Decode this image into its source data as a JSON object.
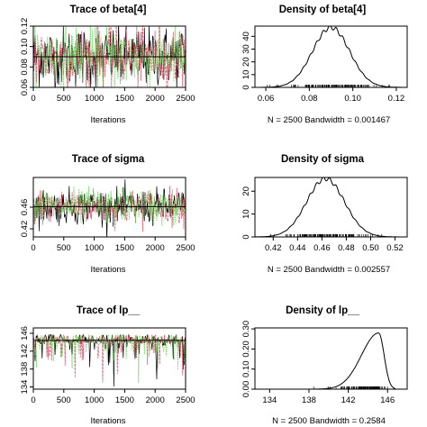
{
  "chart_data": [
    {
      "type": "line",
      "title": "Trace of beta[4]",
      "xlabel": "Iterations",
      "ylabel": "",
      "xlim": [
        0,
        2500
      ],
      "ylim": [
        0.06,
        0.12
      ],
      "xticks": [
        0,
        500,
        1000,
        1500,
        2000,
        2500
      ],
      "yticks": [
        0.06,
        0.08,
        0.1,
        0.12
      ],
      "ytick_labels": [
        "0.06",
        "0.08",
        "0.10",
        "0.12"
      ],
      "grid": false,
      "series": [
        {
          "color": "#000000",
          "center": 0.09,
          "spread": 0.0147
        },
        {
          "color": "#df536b",
          "center": 0.09,
          "spread": 0.0147
        },
        {
          "color": "#61d04f",
          "center": 0.09,
          "spread": 0.0147
        }
      ],
      "mean_line": 0.09
    },
    {
      "type": "line",
      "title": "Density of beta[4]",
      "xlabel": "N = 2500   Bandwidth = 0.001467",
      "ylabel": "",
      "xlim": [
        0.055,
        0.125
      ],
      "ylim": [
        0,
        48
      ],
      "xticks": [
        0.06,
        0.08,
        0.1,
        0.12
      ],
      "xtick_labels": [
        "0.06",
        "0.08",
        "0.10",
        "0.12"
      ],
      "yticks": [
        0,
        10,
        20,
        30,
        40
      ],
      "ytick_labels": [
        "0",
        "10",
        "20",
        "30",
        "40"
      ],
      "grid": false,
      "density": {
        "mean": 0.09,
        "sd": 0.0085,
        "peak": 47,
        "skew": 0
      },
      "rug_range": [
        0.058,
        0.122
      ]
    },
    {
      "type": "line",
      "title": "Trace of sigma",
      "xlabel": "Iterations",
      "ylabel": "",
      "xlim": [
        0,
        2500
      ],
      "ylim": [
        0.405,
        0.515
      ],
      "xticks": [
        0,
        500,
        1000,
        1500,
        2000,
        2500
      ],
      "yticks": [
        0.42,
        0.46
      ],
      "ytick_labels": [
        "0.42",
        "0.46"
      ],
      "grid": false,
      "series": [
        {
          "color": "#000000",
          "center": 0.461,
          "spread": 0.016
        },
        {
          "color": "#df536b",
          "center": 0.461,
          "spread": 0.016
        },
        {
          "color": "#61d04f",
          "center": 0.461,
          "spread": 0.016
        }
      ],
      "mean_line": 0.461
    },
    {
      "type": "line",
      "title": "Density of sigma",
      "xlabel": "N = 2500   Bandwidth = 0.002557",
      "ylabel": "",
      "xlim": [
        0.405,
        0.53
      ],
      "ylim": [
        0,
        26
      ],
      "xticks": [
        0.42,
        0.44,
        0.46,
        0.48,
        0.5,
        0.52
      ],
      "xtick_labels": [
        "0.42",
        "0.44",
        "0.46",
        "0.48",
        "0.50",
        "0.52"
      ],
      "yticks": [
        0,
        10,
        20
      ],
      "ytick_labels": [
        "0",
        "10",
        "20"
      ],
      "grid": false,
      "density": {
        "mean": 0.463,
        "sd": 0.0155,
        "peak": 25.5,
        "skew": 0
      },
      "rug_range": [
        0.412,
        0.518
      ]
    },
    {
      "type": "line",
      "title": "Trace of lp__",
      "xlabel": "Iterations",
      "ylabel": "",
      "xlim": [
        0,
        2500
      ],
      "ylim": [
        133.5,
        147.2
      ],
      "xticks": [
        0,
        500,
        1000,
        1500,
        2000,
        2500
      ],
      "yticks": [
        134,
        138,
        142,
        146
      ],
      "ytick_labels": [
        "134",
        "138",
        "142",
        "146"
      ],
      "grid": false,
      "series": [
        {
          "color": "#000000",
          "center": 144.4,
          "spread": 1.4
        },
        {
          "color": "#df536b",
          "center": 144.4,
          "spread": 1.4
        },
        {
          "color": "#61d04f",
          "center": 144.4,
          "spread": 1.4
        }
      ],
      "mean_line": 144.4
    },
    {
      "type": "line",
      "title": "Density of lp__",
      "xlabel": "N = 2500   Bandwidth = 0.2584",
      "ylabel": "",
      "xlim": [
        132.5,
        148
      ],
      "ylim": [
        0,
        0.305
      ],
      "xticks": [
        134,
        138,
        142,
        146
      ],
      "xtick_labels": [
        "134",
        "138",
        "142",
        "146"
      ],
      "yticks": [
        0.0,
        0.1,
        0.2,
        0.3
      ],
      "ytick_labels": [
        "0.00",
        "0.10",
        "0.20",
        "0.30"
      ],
      "grid": false,
      "density": {
        "mode": 145.1,
        "left_sd": 1.75,
        "right_sd": 0.55,
        "peak": 0.28,
        "skew": 1
      },
      "rug_range": [
        134.5,
        146.8
      ]
    }
  ]
}
